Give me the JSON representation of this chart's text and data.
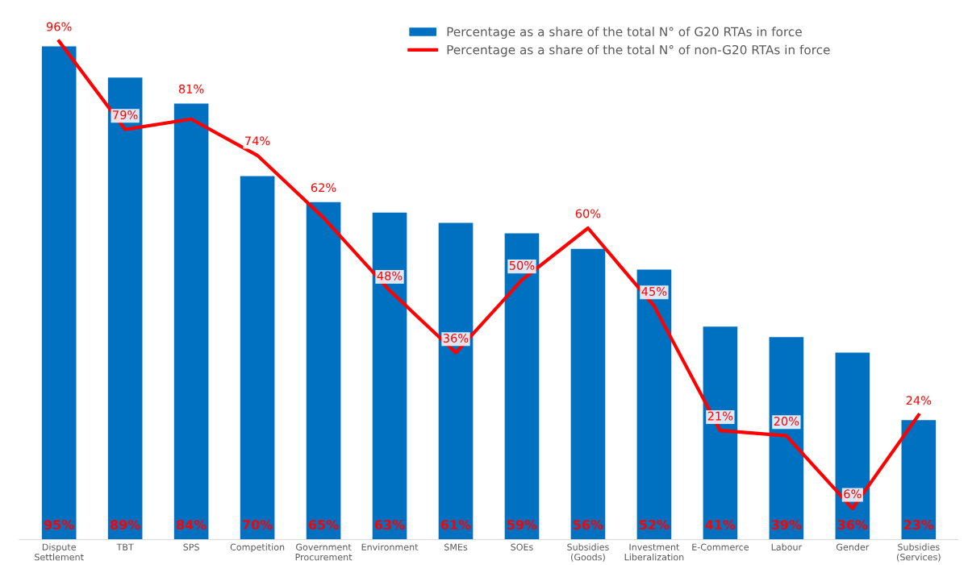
{
  "chart_data": {
    "type": "bar",
    "categories": [
      "Dispute\nSettlement",
      "TBT",
      "SPS",
      "Competition",
      "Government\nProcurement",
      "Environment",
      "SMEs",
      "SOEs",
      "Subsidies\n(Goods)",
      "Investment\nLiberalization",
      "E-Commerce",
      "Labour",
      "Gender",
      "Subsidies\n(Services)"
    ],
    "series": [
      {
        "name": "Percentage as a share of the total N° of G20 RTAs in force",
        "type": "bar",
        "color": "#0070c0",
        "values": [
          95,
          89,
          84,
          70,
          65,
          63,
          61,
          59,
          56,
          52,
          41,
          39,
          36,
          23
        ],
        "value_labels": [
          "95%",
          "89%",
          "84%",
          "70%",
          "65%",
          "63%",
          "61%",
          "59%",
          "56%",
          "52%",
          "41%",
          "39%",
          "36%",
          "23%"
        ]
      },
      {
        "name": "Percentage as a share of the total N° of non-G20 RTAs in force",
        "type": "line",
        "color": "#ff0000",
        "values": [
          96,
          79,
          81,
          74,
          62,
          48,
          36,
          50,
          60,
          45,
          21,
          20,
          6,
          24
        ],
        "value_labels": [
          "96%",
          "79%",
          "81%",
          "74%",
          "62%",
          "48%",
          "36%",
          "50%",
          "60%",
          "45%",
          "21%",
          "20%",
          "6%",
          "24%"
        ]
      }
    ],
    "legend": "top right",
    "grid": false
  }
}
